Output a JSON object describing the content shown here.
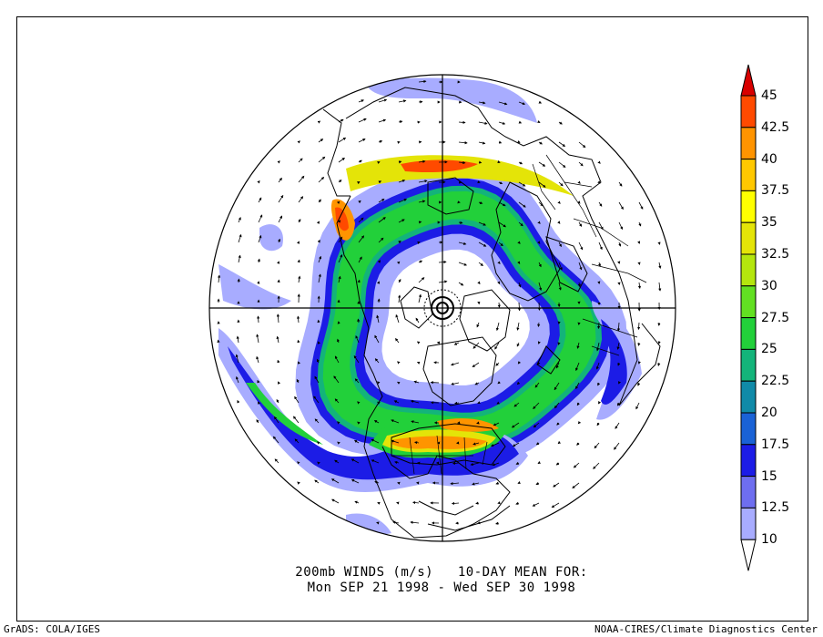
{
  "caption": {
    "line1": "200mb WINDS (m/s)   10-DAY MEAN FOR:",
    "line2": "Mon SEP 21 1998 - Wed SEP 30 1998"
  },
  "credits": {
    "left": "GrADS: COLA/IGES",
    "right": "NOAA-CIRES/Climate Diagnostics Center"
  },
  "colorbar": {
    "labels": [
      "10",
      "12.5",
      "15",
      "17.5",
      "20",
      "22.5",
      "25",
      "27.5",
      "30",
      "32.5",
      "35",
      "37.5",
      "40",
      "42.5",
      "45"
    ],
    "colors": [
      "#a8acff",
      "#6e6ef0",
      "#1c1ce6",
      "#1a62d6",
      "#108aa8",
      "#13b47a",
      "#22d03a",
      "#62e022",
      "#b4e60e",
      "#e4e408",
      "#ffff00",
      "#ffc800",
      "#ff9400",
      "#ff4a00",
      "#d80000"
    ],
    "under_color": "#ffffff"
  },
  "map": {
    "projection": "north-polar-stereographic",
    "jet_colors": {
      "weak": "#a8acff",
      "mid": "#1c1ce6",
      "teal": "#13b47a",
      "green": "#22d03a",
      "yellow": "#e4e408",
      "orange": "#ff9400",
      "red": "#ff4a00"
    }
  }
}
